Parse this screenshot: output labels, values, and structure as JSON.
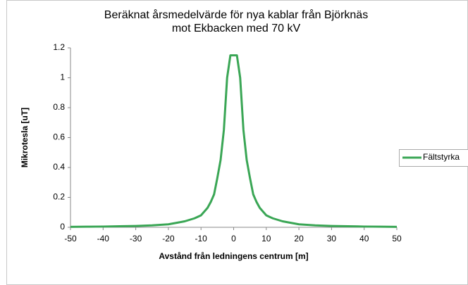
{
  "chart_data": {
    "type": "line",
    "title": "Beräknat årsmedelvärde för nya kablar från Björknäs mot Ekbacken med 70 kV",
    "xlabel": "Avstånd från ledningens centrum [m]",
    "ylabel": "Mikrotesla [uT]",
    "x": [
      -50,
      -45,
      -40,
      -35,
      -30,
      -25,
      -20,
      -15,
      -12,
      -10,
      -8,
      -7,
      -6,
      -5,
      -4,
      -3,
      -2,
      -1,
      0,
      1,
      2,
      3,
      4,
      5,
      6,
      7,
      8,
      10,
      12,
      15,
      20,
      25,
      30,
      35,
      40,
      45,
      50
    ],
    "series": [
      {
        "name": "Fältstyrka",
        "color": "#3aa655",
        "values": [
          0.003,
          0.004,
          0.005,
          0.007,
          0.009,
          0.013,
          0.02,
          0.04,
          0.06,
          0.08,
          0.13,
          0.17,
          0.22,
          0.33,
          0.45,
          0.65,
          1.0,
          1.15,
          1.15,
          1.15,
          1.0,
          0.65,
          0.45,
          0.33,
          0.22,
          0.17,
          0.13,
          0.08,
          0.06,
          0.04,
          0.02,
          0.013,
          0.009,
          0.007,
          0.005,
          0.004,
          0.003
        ]
      }
    ],
    "xlim": [
      -50,
      50
    ],
    "xticks": [
      -50,
      -40,
      -30,
      -20,
      -10,
      0,
      10,
      20,
      30,
      40,
      50
    ],
    "ylim": [
      0,
      1.2
    ],
    "yticks": [
      0,
      0.2,
      0.4,
      0.6,
      0.8,
      1,
      1.2
    ],
    "legend": "right"
  }
}
